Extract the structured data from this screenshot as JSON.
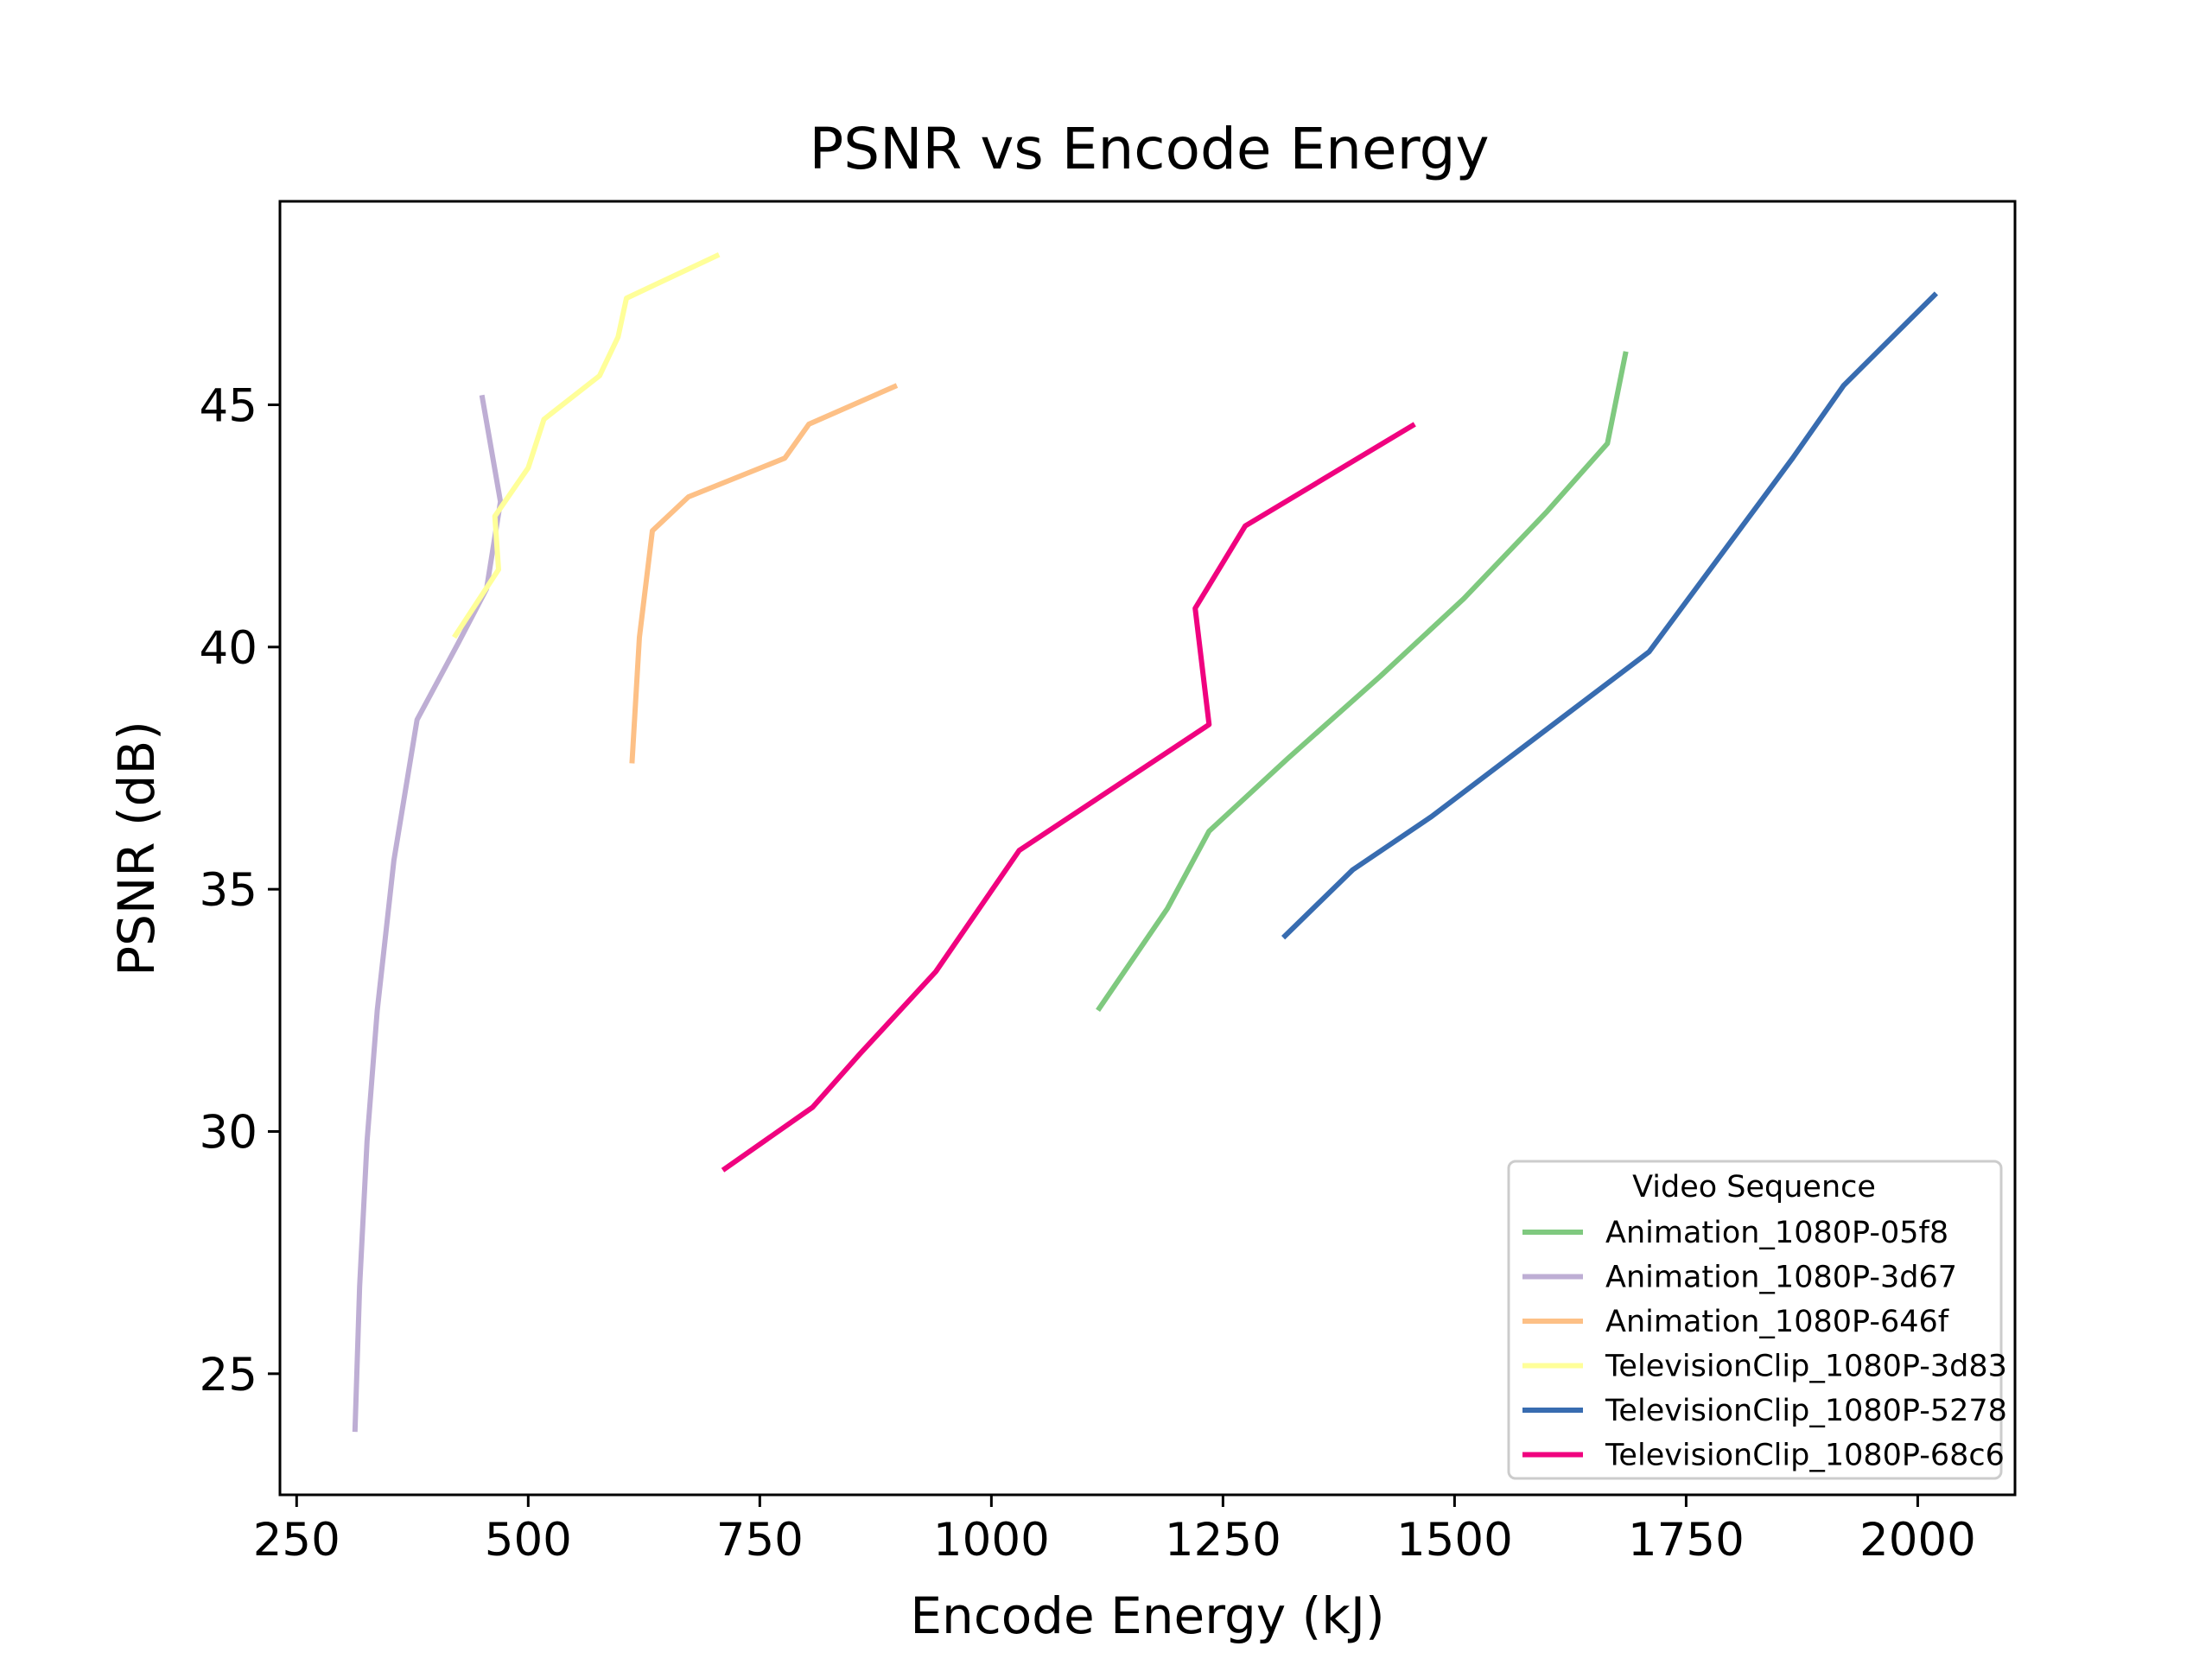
{
  "chart_data": {
    "type": "line",
    "title": "PSNR vs Encode Energy",
    "xlabel": "Encode Energy (kJ)",
    "ylabel": "PSNR (dB)",
    "xlim": [
      232,
      2105
    ],
    "ylim": [
      22.5,
      49.2
    ],
    "xticks": [
      250,
      500,
      750,
      1000,
      1250,
      1500,
      1750,
      2000
    ],
    "yticks": [
      25,
      30,
      35,
      40,
      45
    ],
    "grid": false,
    "legend": {
      "title": "Video Sequence",
      "position": "bottom-right"
    },
    "series": [
      {
        "name": "Animation_1080P-05f8",
        "color": "#7fc97f",
        "points": [
          [
            1115,
            32.5
          ],
          [
            1190,
            34.6
          ],
          [
            1235,
            36.2
          ],
          [
            1320,
            37.7
          ],
          [
            1420,
            39.4
          ],
          [
            1510,
            41.0
          ],
          [
            1600,
            42.8
          ],
          [
            1665,
            44.2
          ],
          [
            1685,
            46.1
          ]
        ]
      },
      {
        "name": "Animation_1080P-3d67",
        "color": "#beaed4",
        "points": [
          [
            313,
            23.8
          ],
          [
            318,
            26.8
          ],
          [
            326,
            29.8
          ],
          [
            337,
            32.5
          ],
          [
            355,
            35.6
          ],
          [
            380,
            38.5
          ],
          [
            425,
            40.1
          ],
          [
            455,
            41.2
          ],
          [
            470,
            43.0
          ],
          [
            450,
            45.2
          ]
        ]
      },
      {
        "name": "Animation_1080P-646f",
        "color": "#fdc086",
        "points": [
          [
            612,
            37.6
          ],
          [
            620,
            40.2
          ],
          [
            634,
            42.4
          ],
          [
            673,
            43.1
          ],
          [
            777,
            43.9
          ],
          [
            803,
            44.6
          ],
          [
            898,
            45.4
          ]
        ]
      },
      {
        "name": "TelevisionClip_1080P-3d83",
        "color": "#ffff99",
        "points": [
          [
            420,
            40.2
          ],
          [
            468,
            41.6
          ],
          [
            464,
            42.7
          ],
          [
            500,
            43.7
          ],
          [
            517,
            44.7
          ],
          [
            577,
            45.6
          ],
          [
            597,
            46.4
          ],
          [
            606,
            47.2
          ],
          [
            706,
            48.1
          ]
        ]
      },
      {
        "name": "TelevisionClip_1080P-5278",
        "color": "#386cb0",
        "points": [
          [
            1315,
            34.0
          ],
          [
            1390,
            35.4
          ],
          [
            1475,
            36.5
          ],
          [
            1710,
            39.9
          ],
          [
            1865,
            43.9
          ],
          [
            1920,
            45.4
          ],
          [
            2020,
            47.3
          ]
        ]
      },
      {
        "name": "TelevisionClip_1080P-68c6",
        "color": "#f0027f",
        "points": [
          [
            710,
            29.2
          ],
          [
            807,
            30.5
          ],
          [
            858,
            31.6
          ],
          [
            940,
            33.3
          ],
          [
            1030,
            35.8
          ],
          [
            1235,
            38.4
          ],
          [
            1220,
            40.8
          ],
          [
            1274,
            42.5
          ],
          [
            1457,
            44.6
          ]
        ]
      }
    ]
  }
}
